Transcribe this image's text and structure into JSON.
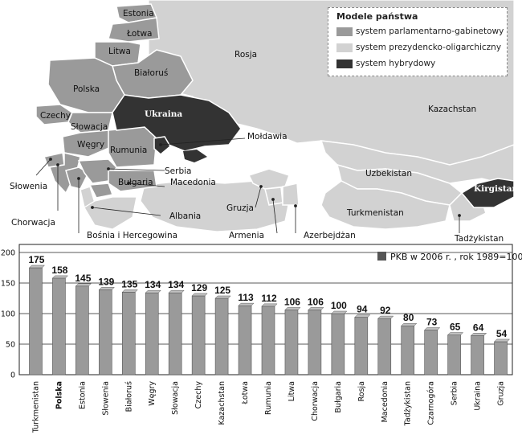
{
  "map": {
    "legend": {
      "title": "Modele państwa",
      "items": [
        {
          "label": "system parlamentarno-gabinetowy",
          "color": "#9a9a9a"
        },
        {
          "label": "system prezydencko-oligarchiczny",
          "color": "#d2d2d2"
        },
        {
          "label": "system hybrydowy",
          "color": "#333333"
        }
      ]
    },
    "labels": {
      "estonia": "Estonia",
      "lotwa": "Łotwa",
      "litwa": "Litwa",
      "rosja": "Rosja",
      "bialorus": "Białoruś",
      "polska": "Polska",
      "czechy": "Czechy",
      "slowacja": "Słowacja",
      "ukraina": "Ukraina",
      "moldawia": "Mołdawia",
      "kazachstan": "Kazachstan",
      "wegry": "Węgry",
      "rumunia": "Rumunia",
      "uzbekistan": "Uzbekistan",
      "kirgistan": "Kirgistan",
      "serbia": "Serbia",
      "slowenia": "Słowenia",
      "bulgaria": "Bułgaria",
      "macedonia": "Macedonia",
      "chorwacja": "Chorwacja",
      "albania": "Albania",
      "gruzja": "Gruzja",
      "turkmenistan": "Turkmenistan",
      "bosnia": "Bośnia i Hercegowina",
      "armenia": "Armenia",
      "azerbejdzan": "Azerbejdżan",
      "tadzykistan": "Tadżykistan"
    },
    "colors": {
      "land": "#d2d2d2",
      "parliamentary": "#9a9a9a",
      "hybrid": "#333333",
      "sea": "#ffffff",
      "border": "#ffffff"
    }
  },
  "chart_data": {
    "type": "bar",
    "legend": "PKB w 2006 r. , rok 1989=100",
    "categories": [
      "Turkmenistan",
      "Polska",
      "Estonia",
      "Słowenia",
      "Białoruś",
      "Węgry",
      "Słowacja",
      "Czechy",
      "Kazachstan",
      "Łotwa",
      "Rumunia",
      "Litwa",
      "Chorwacja",
      "Bułgaria",
      "Rosja",
      "Macedonia",
      "Tadżykistan",
      "Czarnogóra",
      "Serbia",
      "Ukraina",
      "Gruzja"
    ],
    "values": [
      175,
      158,
      145,
      139,
      135,
      134,
      134,
      129,
      125,
      113,
      112,
      106,
      106,
      100,
      94,
      92,
      80,
      73,
      65,
      64,
      54
    ],
    "value_labels": [
      "175",
      "158",
      "145",
      "139",
      "135",
      "134",
      "134",
      "129",
      "125",
      "113",
      "112",
      "106",
      "106",
      "100",
      "94",
      "92",
      "80",
      "73",
      "65",
      "64",
      "54"
    ],
    "bold_category": "Polska",
    "yticks": [
      "0",
      "50",
      "100",
      "150",
      "200"
    ],
    "ytick_values": [
      0,
      50,
      100,
      150,
      200
    ],
    "ylim": [
      0,
      200
    ],
    "grid": true,
    "bar_color": "#9a9a9a"
  }
}
